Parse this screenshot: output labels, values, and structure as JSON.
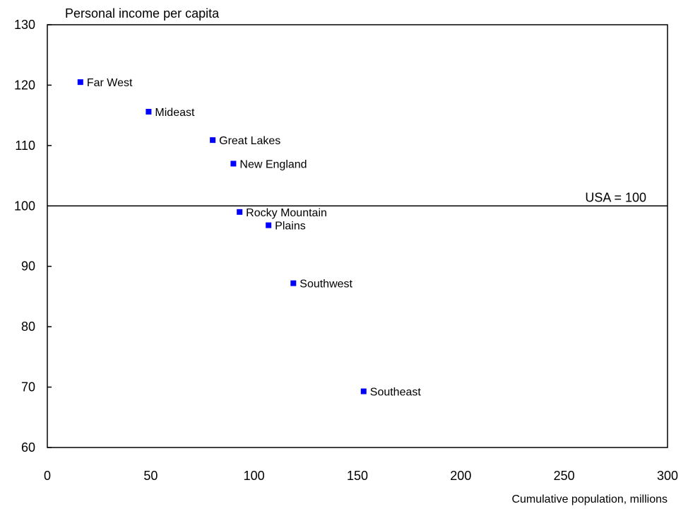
{
  "chart_data": {
    "type": "scatter",
    "title": "",
    "ylabel": "Personal income per capita",
    "xlabel": "Cumulative population, millions",
    "xlim": [
      0,
      300
    ],
    "ylim": [
      60,
      130
    ],
    "xticks": [
      0,
      50,
      100,
      150,
      200,
      250,
      300
    ],
    "yticks": [
      60,
      70,
      80,
      90,
      100,
      110,
      120,
      130
    ],
    "grid": false,
    "legend": "none",
    "marker_color": "#0000ff",
    "reference_line": {
      "y": 100,
      "label": "USA = 100"
    },
    "points": [
      {
        "label": "Far West",
        "x": 16,
        "y": 120.5
      },
      {
        "label": "Mideast",
        "x": 49,
        "y": 115.6
      },
      {
        "label": "Great Lakes",
        "x": 80,
        "y": 110.9
      },
      {
        "label": "New England",
        "x": 90,
        "y": 107
      },
      {
        "label": "Rocky Mountain",
        "x": 93,
        "y": 99
      },
      {
        "label": "Plains",
        "x": 107,
        "y": 96.8
      },
      {
        "label": "Southwest",
        "x": 119,
        "y": 87.2
      },
      {
        "label": "Southeast",
        "x": 153,
        "y": 69.3
      }
    ]
  }
}
